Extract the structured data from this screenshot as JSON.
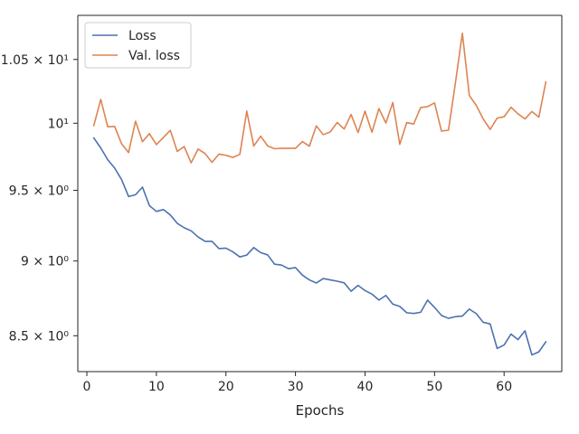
{
  "chart_data": {
    "type": "line",
    "title": "",
    "xlabel": "Epochs",
    "ylabel": "",
    "y_scale": "log",
    "grid": false,
    "legend_position": "top-left",
    "xlim": [
      -1.3,
      68.3
    ],
    "ylim": [
      8.27,
      10.86
    ],
    "x_ticks": [
      0,
      10,
      20,
      30,
      40,
      50,
      60
    ],
    "x_tick_labels": [
      "0",
      "10",
      "20",
      "30",
      "40",
      "50",
      "60"
    ],
    "y_ticks": [
      8.5,
      9,
      9.5,
      10,
      10.5
    ],
    "y_tick_labels": [
      "8.5 × 10⁰",
      "9 × 10⁰",
      "9.5 × 10⁰",
      "10¹",
      "1.05 × 10¹"
    ],
    "x": [
      1,
      2,
      3,
      4,
      5,
      6,
      7,
      8,
      9,
      10,
      11,
      12,
      13,
      14,
      15,
      16,
      17,
      18,
      19,
      20,
      21,
      22,
      23,
      24,
      25,
      26,
      27,
      28,
      29,
      30,
      31,
      32,
      33,
      34,
      35,
      36,
      37,
      38,
      39,
      40,
      41,
      42,
      43,
      44,
      45,
      46,
      47,
      48,
      49,
      50,
      51,
      52,
      53,
      54,
      55,
      56,
      57,
      58,
      59,
      60,
      61,
      62,
      63,
      64,
      65,
      66
    ],
    "series": [
      {
        "name": "Loss",
        "color": "#4c72b0",
        "values": [
          9.888,
          9.813,
          9.725,
          9.663,
          9.578,
          9.455,
          9.468,
          9.523,
          9.389,
          9.348,
          9.361,
          9.323,
          9.263,
          9.232,
          9.21,
          9.167,
          9.136,
          9.136,
          9.086,
          9.089,
          9.063,
          9.028,
          9.041,
          9.093,
          9.058,
          9.042,
          8.978,
          8.972,
          8.947,
          8.955,
          8.903,
          8.871,
          8.85,
          8.88,
          8.871,
          8.862,
          8.851,
          8.794,
          8.834,
          8.799,
          8.775,
          8.735,
          8.766,
          8.708,
          8.693,
          8.651,
          8.646,
          8.654,
          8.735,
          8.686,
          8.633,
          8.614,
          8.625,
          8.629,
          8.675,
          8.645,
          8.588,
          8.577,
          8.418,
          8.44,
          8.511,
          8.475,
          8.532,
          8.376,
          8.396,
          8.46
        ]
      },
      {
        "name": "Val. loss",
        "color": "#dd8452",
        "values": [
          9.982,
          10.184,
          9.973,
          9.976,
          9.844,
          9.778,
          10.016,
          9.86,
          9.921,
          9.838,
          9.892,
          9.946,
          9.787,
          9.823,
          9.702,
          9.805,
          9.771,
          9.705,
          9.767,
          9.758,
          9.742,
          9.765,
          10.093,
          9.827,
          9.902,
          9.828,
          9.807,
          9.81,
          9.81,
          9.81,
          9.861,
          9.826,
          9.98,
          9.913,
          9.934,
          10.006,
          9.956,
          10.067,
          9.929,
          10.093,
          9.931,
          10.113,
          10.002,
          10.16,
          9.84,
          10.005,
          9.994,
          10.121,
          10.128,
          10.157,
          9.94,
          9.947,
          10.313,
          10.712,
          10.215,
          10.137,
          10.033,
          9.953,
          10.039,
          10.05,
          10.123,
          10.072,
          10.033,
          10.09,
          10.047,
          10.321
        ]
      }
    ]
  }
}
